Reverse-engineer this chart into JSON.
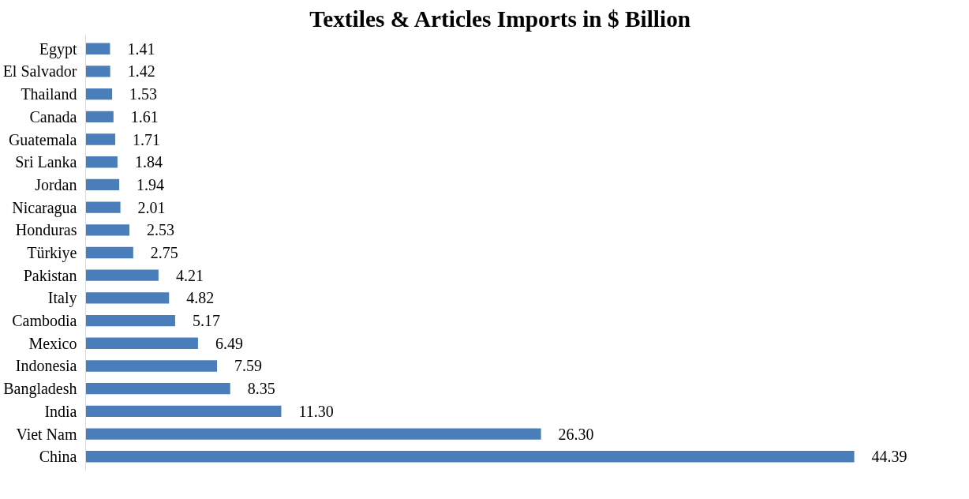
{
  "chart_data": {
    "type": "bar",
    "orientation": "horizontal",
    "title": "Textiles & Articles Imports in $ Billion",
    "categories": [
      "Egypt",
      "El Salvador",
      "Thailand",
      "Canada",
      "Guatemala",
      "Sri Lanka",
      "Jordan",
      "Nicaragua",
      "Honduras",
      "Türkiye",
      "Pakistan",
      "Italy",
      "Cambodia",
      "Mexico",
      "Indonesia",
      "Bangladesh",
      "India",
      "Viet Nam",
      "China"
    ],
    "values": [
      1.41,
      1.42,
      1.53,
      1.61,
      1.71,
      1.84,
      1.94,
      2.01,
      2.53,
      2.75,
      4.21,
      4.82,
      5.17,
      6.49,
      7.59,
      8.35,
      11.3,
      26.3,
      44.39
    ],
    "value_labels": [
      "1.41",
      "1.42",
      "1.53",
      "1.61",
      "1.71",
      "1.84",
      "1.94",
      "2.01",
      "2.53",
      "2.75",
      "4.21",
      "4.82",
      "5.17",
      "6.49",
      "7.59",
      "8.35",
      "11.30",
      "26.30",
      "44.39"
    ],
    "color": "#4a7ebb",
    "tick_labels": "y",
    "grid": false
  }
}
